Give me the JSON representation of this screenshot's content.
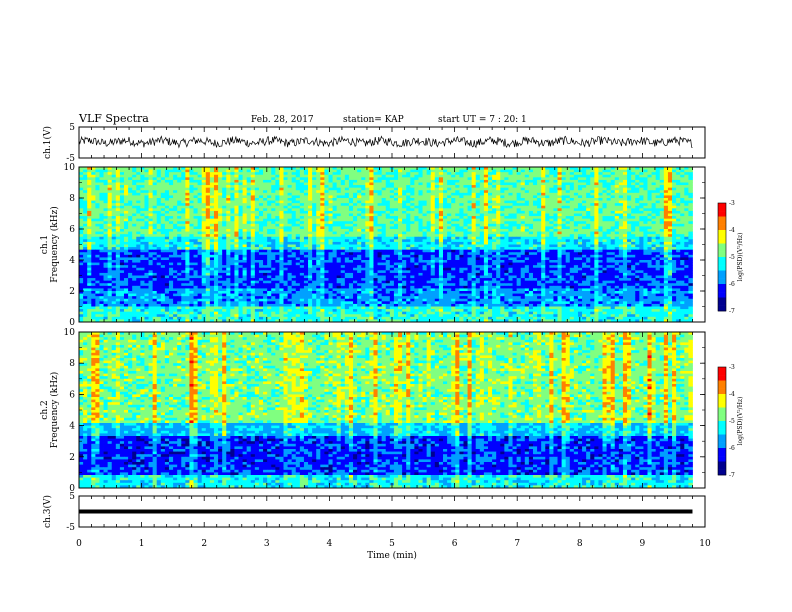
{
  "header": {
    "title": "VLF Spectra",
    "date": "Feb. 28, 2017",
    "station": "station= KAP",
    "start": "start  UT =   7 : 20: 1"
  },
  "chart_data": [
    {
      "type": "line",
      "name": "ch1-waveform",
      "ylabel": "ch.1(V)",
      "ylim": [
        -5,
        5
      ],
      "yticks": [
        "5",
        "-5"
      ],
      "xlim": [
        0,
        10
      ],
      "signal": {
        "mean": 0.2,
        "amplitude": 1.4,
        "x_end": 9.8
      }
    },
    {
      "type": "heatmap",
      "name": "ch1-spectrogram",
      "ylabel_top": "ch.1",
      "ylabel": "Frequency (kHz)",
      "ylim": [
        0,
        10
      ],
      "yticks": [
        "0",
        "2",
        "4",
        "6",
        "8",
        "10"
      ],
      "xlim": [
        0,
        10
      ],
      "x_end": 9.8,
      "colorbar": {
        "label": "log(PSD)(V²/Hz)",
        "range": [
          -7,
          -3
        ],
        "ticks": [
          "-3",
          "-4",
          "-5",
          "-6",
          "-7"
        ]
      }
    },
    {
      "type": "heatmap",
      "name": "ch2-spectrogram",
      "ylabel_top": "ch.2",
      "ylabel": "Frequency (kHz)",
      "ylim": [
        0,
        10
      ],
      "yticks": [
        "0",
        "2",
        "4",
        "6",
        "8",
        "10"
      ],
      "xlim": [
        0,
        10
      ],
      "x_end": 9.8,
      "colorbar": {
        "label": "log(PSD)(V²/Hz)",
        "range": [
          -7,
          -3
        ],
        "ticks": [
          "-3",
          "-4",
          "-5",
          "-6",
          "-7"
        ]
      }
    },
    {
      "type": "line",
      "name": "ch3-waveform",
      "ylabel": "ch.3(V)",
      "ylim": [
        -5,
        5
      ],
      "yticks": [
        "5",
        "-5"
      ],
      "xlim": [
        0,
        10
      ],
      "signal": {
        "mean": 0.0,
        "amplitude": 0.0,
        "x_end": 9.8
      }
    }
  ],
  "xaxis": {
    "label": "Time (min)",
    "ticks": [
      "0",
      "1",
      "2",
      "3",
      "4",
      "5",
      "6",
      "7",
      "8",
      "9",
      "10"
    ]
  },
  "colors": {
    "colormap": [
      "#00008f",
      "#0000ff",
      "#00a0ff",
      "#00ffff",
      "#80ff80",
      "#ffff00",
      "#ff8000",
      "#ff0000",
      "#800000"
    ]
  }
}
